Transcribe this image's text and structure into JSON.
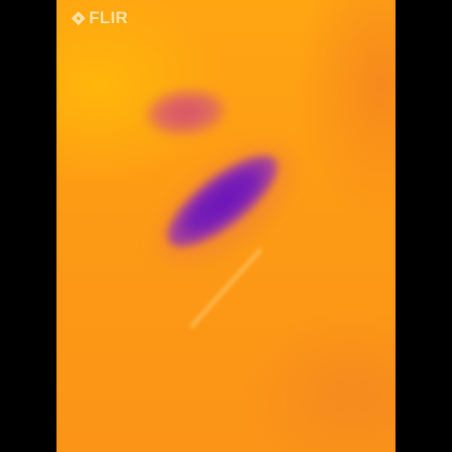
{
  "brand": {
    "logo_text": "FLIR",
    "logo_icon": "flir-diamond-logo-icon"
  },
  "palette": {
    "background_letterbox": "#000000",
    "hot_orange": "#ffa512",
    "warm_orange": "#f58a1e",
    "cool_magenta": "#d8526a",
    "coldest_purple": "#6d13b8"
  }
}
